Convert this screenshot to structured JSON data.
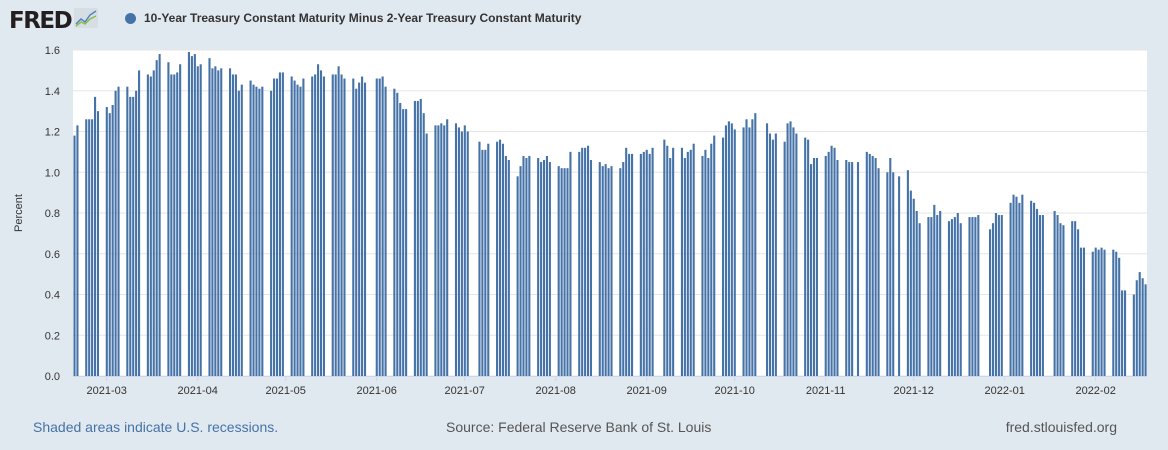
{
  "header": {
    "logo": "FRED",
    "logo_icon": "line-chart-icon"
  },
  "footer": {
    "recessions_note": "Shaded areas indicate U.S. recessions.",
    "source": "Source: Federal Reserve Bank of St. Louis",
    "site": "fred.stlouisfed.org"
  },
  "colors": {
    "series": "#4572a7",
    "background": "#e1e9f0",
    "plot_background": "#ffffff",
    "grid": "#e6e6e6"
  },
  "chart_data": {
    "type": "bar",
    "title": "",
    "xlabel": "",
    "ylabel": "Percent",
    "ylim": [
      0,
      1.6
    ],
    "xlim": [
      "2021-02-18",
      "2022-02-18"
    ],
    "yticks": [
      "0.0",
      "0.2",
      "0.4",
      "0.6",
      "0.8",
      "1.0",
      "1.2",
      "1.4",
      "1.6"
    ],
    "xticks": [
      "2021-03",
      "2021-04",
      "2021-05",
      "2021-06",
      "2021-07",
      "2021-08",
      "2021-09",
      "2021-10",
      "2021-11",
      "2021-12",
      "2022-01",
      "2022-02"
    ],
    "grid": true,
    "legend_placement": "top-left",
    "series": [
      {
        "name": "10-Year Treasury Constant Maturity Minus 2-Year Treasury Constant Maturity",
        "weekly_observations": [
          [
            "2021-02-15",
            [
              null,
              null,
              null,
              1.18,
              1.23
            ]
          ],
          [
            "2021-02-22",
            [
              1.26,
              1.26,
              1.26,
              1.37,
              1.3
            ]
          ],
          [
            "2021-03-01",
            [
              1.32,
              1.29,
              1.33,
              1.4,
              1.42
            ]
          ],
          [
            "2021-03-08",
            [
              1.42,
              1.37,
              1.37,
              1.4,
              1.5
            ]
          ],
          [
            "2021-03-15",
            [
              1.48,
              1.47,
              1.5,
              1.55,
              1.58
            ]
          ],
          [
            "2021-03-22",
            [
              1.54,
              1.48,
              1.48,
              1.49,
              1.53
            ]
          ],
          [
            "2021-03-29",
            [
              1.59,
              1.57,
              1.58,
              1.52,
              1.53
            ]
          ],
          [
            "2021-04-05",
            [
              1.56,
              1.51,
              1.52,
              1.5,
              1.51
            ]
          ],
          [
            "2021-04-12",
            [
              1.51,
              1.48,
              1.48,
              1.4,
              1.43
            ]
          ],
          [
            "2021-04-19",
            [
              1.45,
              1.43,
              1.42,
              1.41,
              1.42
            ]
          ],
          [
            "2021-04-26",
            [
              1.4,
              1.46,
              1.46,
              1.49,
              1.49
            ]
          ],
          [
            "2021-05-03",
            [
              1.47,
              1.45,
              1.43,
              1.42,
              1.46
            ]
          ],
          [
            "2021-05-10",
            [
              1.47,
              1.48,
              1.53,
              1.5,
              1.47
            ]
          ],
          [
            "2021-05-17",
            [
              1.48,
              1.48,
              1.52,
              1.48,
              1.46
            ]
          ],
          [
            "2021-05-24",
            [
              1.46,
              1.41,
              1.44,
              1.47,
              1.44
            ]
          ],
          [
            "2021-05-31",
            [
              null,
              1.46,
              1.46,
              1.47,
              1.42
            ]
          ],
          [
            "2021-06-07",
            [
              1.41,
              1.39,
              1.34,
              1.31,
              1.31
            ]
          ],
          [
            "2021-06-14",
            [
              1.35,
              1.35,
              1.36,
              1.29,
              1.19
            ]
          ],
          [
            "2021-06-21",
            [
              1.23,
              1.23,
              1.24,
              1.23,
              1.26
            ]
          ],
          [
            "2021-06-28",
            [
              1.24,
              1.22,
              1.2,
              1.23,
              1.2
            ]
          ],
          [
            "2021-07-05",
            [
              null,
              1.15,
              1.11,
              1.11,
              1.14
            ]
          ],
          [
            "2021-07-12",
            [
              1.15,
              1.16,
              1.14,
              1.08,
              1.06
            ]
          ],
          [
            "2021-07-19",
            [
              0.98,
              1.03,
              1.08,
              1.07,
              1.08
            ]
          ],
          [
            "2021-07-26",
            [
              1.07,
              1.05,
              1.06,
              1.08,
              1.05
            ]
          ],
          [
            "2021-08-02",
            [
              1.03,
              1.02,
              1.02,
              1.02,
              1.1
            ]
          ],
          [
            "2021-08-09",
            [
              1.1,
              1.12,
              1.12,
              1.13,
              1.06
            ]
          ],
          [
            "2021-08-16",
            [
              1.05,
              1.03,
              1.04,
              1.02,
              1.03
            ]
          ],
          [
            "2021-08-23",
            [
              1.02,
              1.05,
              1.12,
              1.09,
              1.09
            ]
          ],
          [
            "2021-08-30",
            [
              1.09,
              1.1,
              1.11,
              1.09,
              1.12
            ]
          ],
          [
            "2021-09-06",
            [
              null,
              1.16,
              1.13,
              1.07,
              1.12
            ]
          ],
          [
            "2021-09-13",
            [
              1.12,
              1.07,
              1.1,
              1.11,
              1.14
            ]
          ],
          [
            "2021-09-20",
            [
              1.08,
              1.11,
              1.07,
              1.14,
              1.18
            ]
          ],
          [
            "2021-09-27",
            [
              1.17,
              1.23,
              1.25,
              1.24,
              1.21
            ]
          ],
          [
            "2021-10-04",
            [
              1.22,
              1.26,
              1.22,
              1.26,
              1.29
            ]
          ],
          [
            "2021-10-11",
            [
              null,
              1.24,
              1.19,
              1.16,
              1.19
            ]
          ],
          [
            "2021-10-18",
            [
              1.15,
              1.24,
              1.25,
              1.22,
              1.19
            ]
          ],
          [
            "2021-10-25",
            [
              1.17,
              1.16,
              1.04,
              1.07,
              1.07
            ]
          ],
          [
            "2021-11-01",
            [
              1.08,
              1.1,
              1.13,
              1.12,
              1.06
            ]
          ],
          [
            "2021-11-08",
            [
              1.06,
              1.05,
              1.05,
              null,
              1.05
            ]
          ],
          [
            "2021-11-15",
            [
              1.1,
              1.09,
              1.08,
              1.07,
              1.02
            ]
          ],
          [
            "2021-11-22",
            [
              1.0,
              1.07,
              1.0,
              null,
              0.98
            ]
          ],
          [
            "2021-11-29",
            [
              1.01,
              0.91,
              0.87,
              0.81,
              0.75
            ]
          ],
          [
            "2021-12-06",
            [
              0.78,
              0.78,
              0.84,
              0.79,
              0.81
            ]
          ],
          [
            "2021-12-13",
            [
              0.76,
              0.77,
              0.78,
              0.8,
              0.75
            ]
          ],
          [
            "2021-12-20",
            [
              0.78,
              0.78,
              0.78,
              0.79,
              null
            ]
          ],
          [
            "2021-12-27",
            [
              0.72,
              0.75,
              0.8,
              0.79,
              0.79
            ]
          ],
          [
            "2022-01-03",
            [
              0.85,
              0.89,
              0.88,
              0.85,
              0.89
            ]
          ],
          [
            "2022-01-10",
            [
              0.86,
              0.85,
              0.82,
              0.79,
              0.79
            ]
          ],
          [
            "2022-01-17",
            [
              null,
              0.81,
              0.79,
              0.75,
              0.74
            ]
          ],
          [
            "2022-01-24",
            [
              0.76,
              0.76,
              0.72,
              0.63,
              0.63
            ]
          ],
          [
            "2022-01-31",
            [
              0.61,
              0.63,
              0.62,
              0.63,
              0.62
            ]
          ],
          [
            "2022-02-07",
            [
              0.62,
              0.61,
              0.58,
              0.42,
              0.42
            ]
          ],
          [
            "2022-02-14",
            [
              0.4,
              0.47,
              0.51,
              0.48,
              0.45
            ]
          ]
        ]
      }
    ]
  }
}
